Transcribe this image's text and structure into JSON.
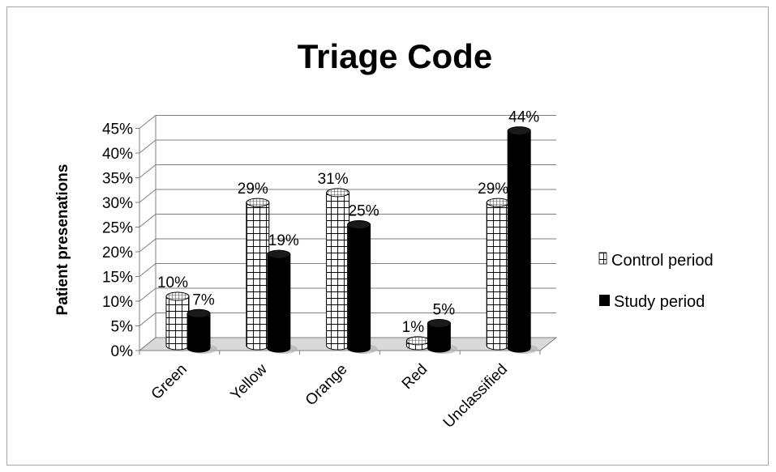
{
  "chart_data": {
    "type": "bar",
    "title": "Triage Code",
    "ylabel": "Patient presenations",
    "xlabel": "",
    "categories": [
      "Green",
      "Yellow",
      "Orange",
      "Red",
      "Unclassified"
    ],
    "series": [
      {
        "name": "Control period",
        "values": [
          10,
          29,
          31,
          1,
          29
        ],
        "labels": [
          "10%",
          "29%",
          "31%",
          "1%",
          "29%"
        ],
        "color": "#ffffff",
        "pattern": "grid"
      },
      {
        "name": "Study period",
        "values": [
          7,
          19,
          25,
          5,
          44
        ],
        "labels": [
          "7%",
          "19%",
          "25%",
          "5%",
          "44%"
        ],
        "color": "#000000",
        "pattern": "solid"
      }
    ],
    "ylim": [
      0,
      45
    ],
    "yticks": [
      "0%",
      "5%",
      "10%",
      "15%",
      "20%",
      "25%",
      "30%",
      "35%",
      "40%",
      "45%"
    ],
    "grid": true,
    "legend_position": "right",
    "style": "3d-cylinder"
  }
}
